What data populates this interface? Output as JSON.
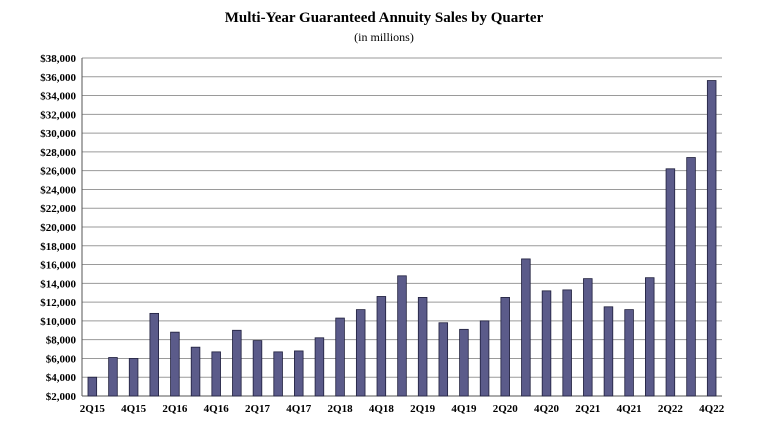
{
  "chart_data": {
    "type": "bar",
    "title": "Multi-Year Guaranteed Annuity Sales by Quarter",
    "subtitle": "(in millions)",
    "xlabel": "",
    "ylabel": "",
    "ylim": [
      2000,
      38000
    ],
    "y_tick_step": 2000,
    "y_tick_prefix": "$",
    "grid": true,
    "bar_color": "#5b5b8a",
    "categories": [
      "2Q15",
      "3Q15",
      "4Q15",
      "1Q16",
      "2Q16",
      "3Q16",
      "4Q16",
      "1Q17",
      "2Q17",
      "3Q17",
      "4Q17",
      "1Q18",
      "2Q18",
      "3Q18",
      "4Q18",
      "1Q19",
      "2Q19",
      "3Q19",
      "4Q19",
      "1Q20",
      "2Q20",
      "3Q20",
      "4Q20",
      "1Q21",
      "2Q21",
      "3Q21",
      "4Q21",
      "1Q22",
      "2Q22",
      "3Q22",
      "4Q22"
    ],
    "x_tick_labels": [
      "2Q15",
      "",
      "4Q15",
      "",
      "2Q16",
      "",
      "4Q16",
      "",
      "2Q17",
      "",
      "4Q17",
      "",
      "2Q18",
      "",
      "4Q18",
      "",
      "2Q19",
      "",
      "4Q19",
      "",
      "2Q20",
      "",
      "4Q20",
      "",
      "2Q21",
      "",
      "4Q21",
      "",
      "2Q22",
      "",
      "4Q22"
    ],
    "values": [
      4000,
      6100,
      6000,
      10800,
      8800,
      7200,
      6700,
      9000,
      7900,
      6700,
      6800,
      8200,
      10300,
      11200,
      12600,
      14800,
      12500,
      9800,
      9100,
      10000,
      12500,
      16600,
      13200,
      13300,
      14500,
      11500,
      11200,
      14600,
      26200,
      27400,
      35600
    ]
  }
}
